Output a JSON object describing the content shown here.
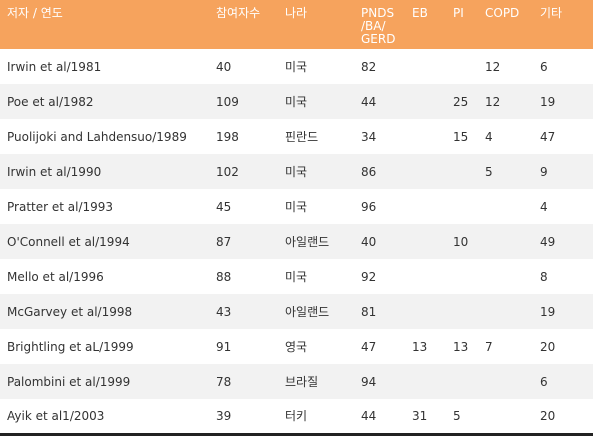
{
  "headers": [
    "저자 / 연도",
    "참여자수",
    "나라",
    "PNDS /BA/ GERD",
    "EB",
    "PI",
    "COPD",
    "기타"
  ],
  "rows": [
    [
      "Irwin et al/1981",
      "40",
      "미국",
      "82",
      "",
      "",
      "12",
      "6"
    ],
    [
      "Poe et al/1982",
      "109",
      "미국",
      "44",
      "",
      "25",
      "12",
      "19"
    ],
    [
      "Puolijoki and Lahdensuo/1989",
      "198",
      "핀란드",
      "34",
      "",
      "15",
      "4",
      "47"
    ],
    [
      "Irwin et al/1990",
      "102",
      "미국",
      "86",
      "",
      "",
      "5",
      "9"
    ],
    [
      "Pratter et al/1993",
      "45",
      "미국",
      "96",
      "",
      "",
      "",
      "4"
    ],
    [
      "O'Connell et al/1994",
      "87",
      "아일랜드",
      "40",
      "",
      "10",
      "",
      "49"
    ],
    [
      "Mello et al/1996",
      "88",
      "미국",
      "92",
      "",
      "",
      "",
      "8"
    ],
    [
      "McGarvey et al/1998",
      "43",
      "아일랜드",
      "81",
      "",
      "",
      "",
      "19"
    ],
    [
      "Brightling et aL/1999",
      "91",
      "영국",
      "47",
      "13",
      "13",
      "7",
      "20"
    ],
    [
      "Palombini et al/1999",
      "78",
      "브라질",
      "94",
      "",
      "",
      "",
      "6"
    ],
    [
      "Ayik et al1/2003",
      "39",
      "터키",
      "44",
      "31",
      "5",
      "",
      "20"
    ]
  ]
}
